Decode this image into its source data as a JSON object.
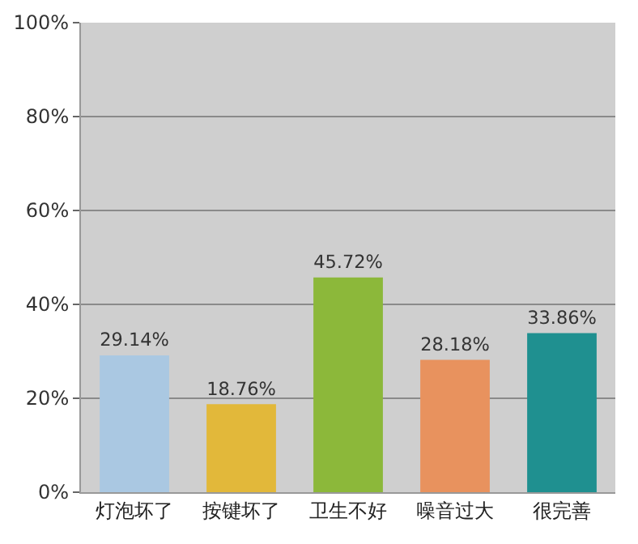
{
  "chart_data": {
    "type": "bar",
    "categories": [
      "灯泡坏了",
      "按键坏了",
      "卫生不好",
      "噪音过大",
      "很完善"
    ],
    "values": [
      29.14,
      18.76,
      45.72,
      28.18,
      33.86
    ],
    "colors": [
      "#aac8e2",
      "#e2b83a",
      "#8cb83a",
      "#e8925e",
      "#1f9090"
    ],
    "value_labels": [
      "29.14%",
      "18.76%",
      "45.72%",
      "28.18%",
      "33.86%"
    ],
    "ylim": [
      0,
      100
    ],
    "yticks": [
      {
        "value": 0,
        "label": "0%"
      },
      {
        "value": 20,
        "label": "20%"
      },
      {
        "value": 40,
        "label": "40%"
      },
      {
        "value": 60,
        "label": "60%"
      },
      {
        "value": 80,
        "label": "80%"
      },
      {
        "value": 100,
        "label": "100%"
      }
    ],
    "grid": "y"
  }
}
